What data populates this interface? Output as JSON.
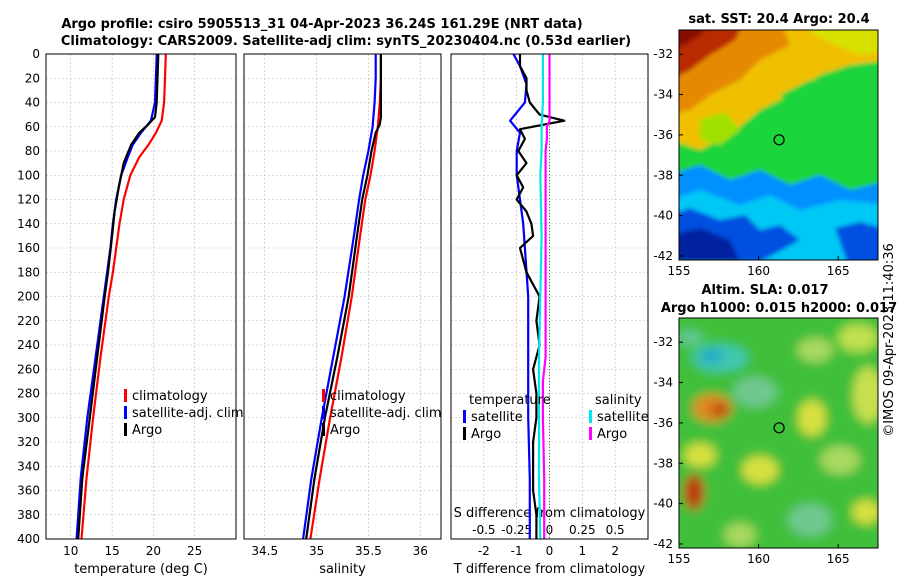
{
  "figure": {
    "title_line1": "Argo profile: csiro 5905513_31 04-Apr-2023 36.24S 161.29E (NRT data)",
    "title_line2": "Climatology: CARS2009. Satellite-adj clim: synTS_20230404.nc (0.53d earlier)",
    "watermark": "©IMOS 09-Apr-2023 11:40:36"
  },
  "colors": {
    "climatology": "#ff0000",
    "satellite": "#0000ff",
    "argo": "#000000",
    "sal_satellite": "#00e5ee",
    "sal_argo": "#ff00ff"
  },
  "chart_data": [
    {
      "id": "temperature",
      "type": "line",
      "xlabel": "temperature (deg C)",
      "ylabel": "",
      "xlim": [
        7,
        30
      ],
      "ylim": [
        400,
        0
      ],
      "xticks": [
        10,
        15,
        20,
        25
      ],
      "yticks": [
        0,
        20,
        40,
        60,
        80,
        100,
        120,
        140,
        160,
        180,
        200,
        220,
        240,
        260,
        280,
        300,
        320,
        340,
        360,
        380,
        400
      ],
      "grid": true,
      "legend": {
        "position": "center-right",
        "entries": [
          "climatology",
          "satellite-adj. clim",
          "Argo"
        ]
      },
      "series": [
        {
          "name": "climatology",
          "color_key": "climatology",
          "depth": [
            0,
            20,
            40,
            55,
            65,
            75,
            85,
            100,
            120,
            140,
            160,
            180,
            200,
            250,
            300,
            350,
            400
          ],
          "values": [
            21.5,
            21.4,
            21.3,
            21.0,
            20.3,
            19.4,
            18.3,
            17.2,
            16.4,
            15.9,
            15.5,
            15.1,
            14.6,
            13.6,
            12.7,
            11.9,
            11.3
          ]
        },
        {
          "name": "satellite-adj. clim",
          "color_key": "satellite",
          "depth": [
            0,
            20,
            40,
            55,
            65,
            75,
            85,
            100,
            120,
            140,
            160,
            180,
            200,
            250,
            300,
            350,
            400
          ],
          "values": [
            20.4,
            20.3,
            20.2,
            19.7,
            18.5,
            17.5,
            16.9,
            16.1,
            15.5,
            15.1,
            14.8,
            14.4,
            14.0,
            13.0,
            12.0,
            11.2,
            10.7
          ]
        },
        {
          "name": "Argo",
          "color_key": "argo",
          "depth": [
            0,
            20,
            40,
            52,
            58,
            65,
            75,
            90,
            110,
            130,
            150,
            180,
            200,
            250,
            300,
            350,
            400
          ],
          "values": [
            20.6,
            20.5,
            20.4,
            20.2,
            19.4,
            18.3,
            17.3,
            16.4,
            15.8,
            15.3,
            15.0,
            14.5,
            14.1,
            13.2,
            12.3,
            11.4,
            10.9
          ]
        }
      ]
    },
    {
      "id": "salinity",
      "type": "line",
      "xlabel": "salinity",
      "ylabel": "",
      "xlim": [
        34.3,
        36.2
      ],
      "ylim": [
        400,
        0
      ],
      "xticks": [
        34.5,
        35,
        35.5,
        36
      ],
      "xtick_labels": [
        "34.5",
        "35",
        "35.5",
        "36"
      ],
      "grid": true,
      "legend": {
        "position": "center-right",
        "entries": [
          "climatology",
          "satellite-adj. clim",
          "Argo"
        ]
      },
      "series": [
        {
          "name": "climatology",
          "color_key": "climatology",
          "depth": [
            0,
            20,
            40,
            60,
            80,
            100,
            120,
            150,
            200,
            250,
            300,
            350,
            400
          ],
          "values": [
            35.62,
            35.62,
            35.61,
            35.59,
            35.56,
            35.52,
            35.47,
            35.42,
            35.34,
            35.24,
            35.13,
            35.03,
            34.94
          ]
        },
        {
          "name": "satellite-adj. clim",
          "color_key": "satellite",
          "depth": [
            0,
            20,
            40,
            60,
            80,
            100,
            120,
            150,
            200,
            250,
            300,
            350,
            400
          ],
          "values": [
            35.57,
            35.57,
            35.56,
            35.54,
            35.5,
            35.45,
            35.41,
            35.36,
            35.27,
            35.16,
            35.05,
            34.95,
            34.87
          ]
        },
        {
          "name": "Argo",
          "color_key": "argo",
          "depth": [
            0,
            20,
            40,
            52,
            58,
            65,
            80,
            100,
            120,
            150,
            200,
            250,
            300,
            350,
            400
          ],
          "values": [
            35.62,
            35.62,
            35.62,
            35.62,
            35.61,
            35.57,
            35.53,
            35.49,
            35.44,
            35.39,
            35.31,
            35.2,
            35.08,
            34.98,
            34.9
          ]
        }
      ]
    },
    {
      "id": "difference",
      "type": "line",
      "xlabel": "T difference from climatology",
      "top_axis_label": "S difference from climatology",
      "xlim": [
        -3,
        3
      ],
      "ylim": [
        400,
        0
      ],
      "xticks": [
        -2,
        -1,
        0,
        1,
        2
      ],
      "xtick_labels": [
        "-2",
        "-1",
        "0",
        "1",
        "2"
      ],
      "sticks": [
        -0.5,
        -0.25,
        0,
        0.25,
        0.5
      ],
      "stick_labels": [
        "-0.5",
        "-0.25",
        "0",
        "0.25",
        "0.5"
      ],
      "s_scale": 4,
      "grid": true,
      "legend": {
        "position": "center",
        "temperature_title": "temperature",
        "salinity_title": "salinity",
        "entries": [
          "satellite",
          "Argo",
          "satellite",
          "Argo"
        ]
      },
      "series": [
        {
          "name": "T satellite",
          "color_key": "satellite",
          "kind": "T",
          "depth": [
            0,
            10,
            25,
            40,
            55,
            65,
            80,
            100,
            120,
            140,
            160,
            200,
            250,
            300,
            350,
            400
          ],
          "values": [
            -1.1,
            -0.9,
            -0.7,
            -0.75,
            -1.2,
            -0.9,
            -1.0,
            -1.0,
            -0.9,
            -0.8,
            -0.75,
            -0.65,
            -0.65,
            -0.65,
            -0.6,
            -0.6
          ]
        },
        {
          "name": "T Argo",
          "color_key": "argo",
          "kind": "T",
          "depth": [
            0,
            10,
            20,
            30,
            40,
            50,
            55,
            62,
            70,
            80,
            90,
            100,
            110,
            120,
            130,
            140,
            150,
            160,
            180,
            200,
            220,
            240,
            260,
            280,
            300,
            320,
            340,
            360,
            380,
            400
          ],
          "values": [
            -0.9,
            -0.9,
            -0.7,
            -0.7,
            -0.6,
            -0.3,
            0.45,
            -0.9,
            -0.75,
            -0.95,
            -0.7,
            -1.0,
            -0.8,
            -1.0,
            -0.7,
            -0.55,
            -0.5,
            -0.9,
            -0.7,
            -0.3,
            -0.4,
            -0.3,
            -0.5,
            -0.4,
            -0.4,
            -0.5,
            -0.5,
            -0.5,
            -0.4,
            -0.4
          ]
        },
        {
          "name": "S satellite",
          "color_key": "sal_satellite",
          "kind": "S",
          "depth": [
            0,
            20,
            40,
            60,
            80,
            100,
            150,
            200,
            250,
            300,
            350,
            400
          ],
          "values": [
            -0.05,
            -0.05,
            -0.05,
            -0.06,
            -0.06,
            -0.07,
            -0.06,
            -0.07,
            -0.08,
            -0.08,
            -0.08,
            -0.07
          ]
        },
        {
          "name": "S Argo",
          "color_key": "sal_argo",
          "kind": "S",
          "depth": [
            0,
            20,
            40,
            55,
            60,
            70,
            80,
            100,
            150,
            200,
            250,
            270,
            300,
            350,
            400
          ],
          "values": [
            0.0,
            0.0,
            0.0,
            0.0,
            -0.02,
            -0.02,
            -0.03,
            -0.03,
            -0.03,
            -0.03,
            -0.03,
            -0.05,
            -0.05,
            -0.04,
            -0.04
          ]
        }
      ]
    },
    {
      "id": "sst_map",
      "type": "heatmap",
      "title": "sat. SST: 20.4 Argo: 20.4",
      "xlim": [
        155,
        167.5
      ],
      "ylim": [
        -42.2,
        -30.8
      ],
      "xticks": [
        155,
        160,
        165
      ],
      "yticks": [
        -32,
        -34,
        -36,
        -38,
        -40,
        -42
      ],
      "marker": {
        "lon": 161.29,
        "lat": -36.24
      }
    },
    {
      "id": "sla_map",
      "type": "heatmap",
      "title_line1": "Altim. SLA: 0.017",
      "title_line2": "Argo h1000: 0.015 h2000: 0.017",
      "xlim": [
        155,
        167.5
      ],
      "ylim": [
        -42.2,
        -30.8
      ],
      "xticks": [
        155,
        160,
        165
      ],
      "yticks": [
        -32,
        -34,
        -36,
        -38,
        -40,
        -42
      ],
      "marker": {
        "lon": 161.29,
        "lat": -36.24
      }
    }
  ]
}
